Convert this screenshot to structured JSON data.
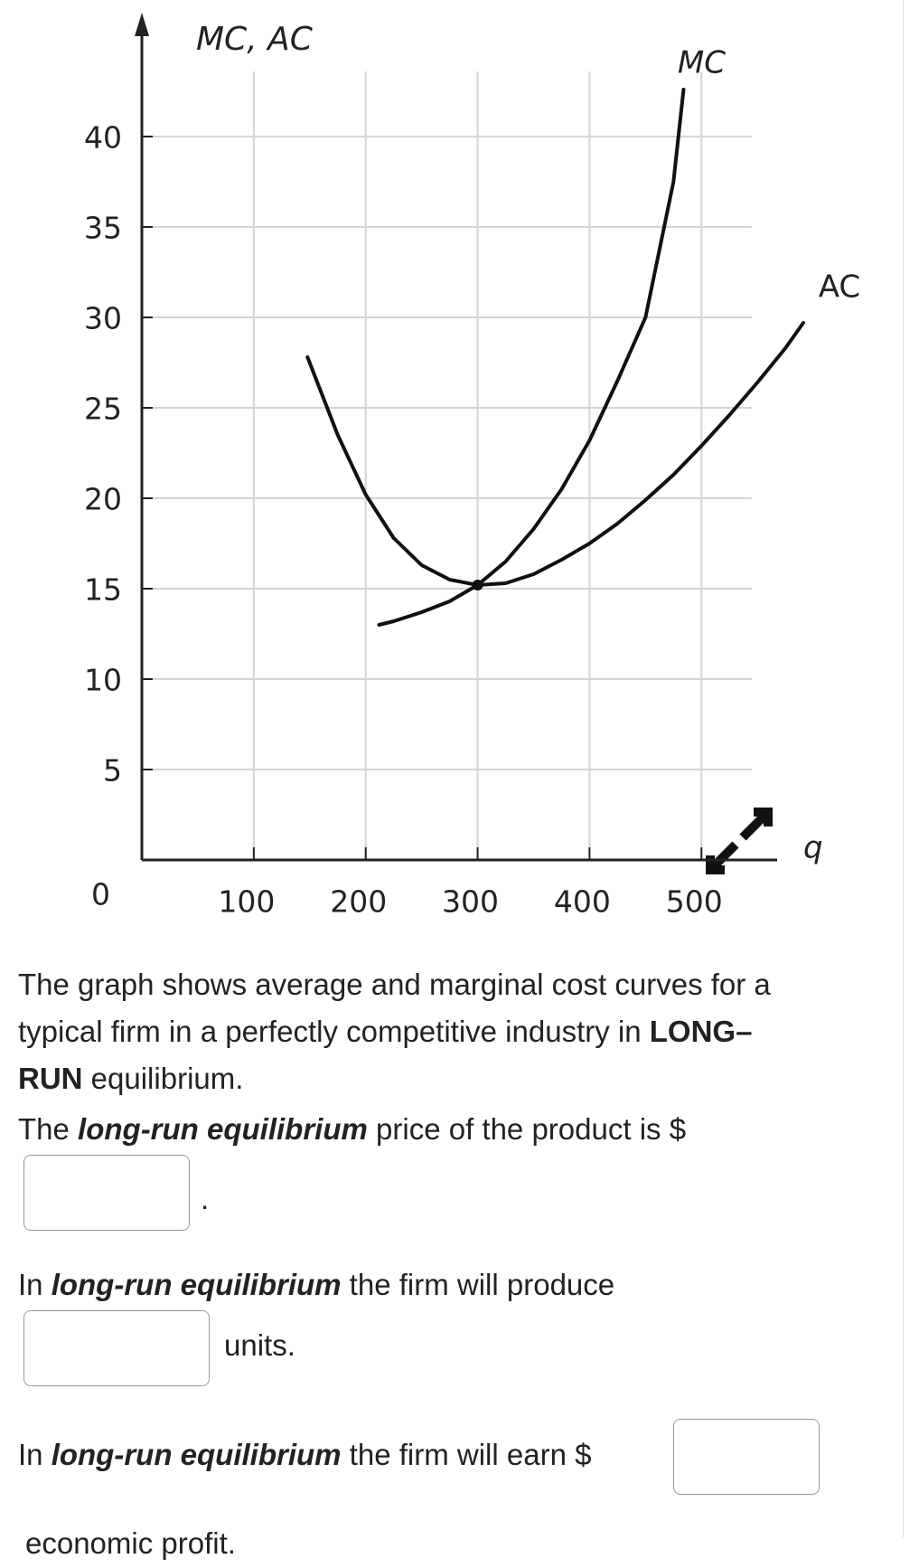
{
  "chart_data": {
    "type": "line",
    "axis_label_y": "MC,  AC",
    "axis_label_x": "q",
    "xlim": [
      0,
      545
    ],
    "ylim": [
      0,
      43.6
    ],
    "xticks": [
      100,
      200,
      300,
      400,
      500
    ],
    "yticks": [
      0,
      5,
      10,
      15,
      20,
      25,
      30,
      35,
      40
    ],
    "grid": true,
    "series": [
      {
        "name": "MC",
        "color": "#111111",
        "x": [
          212,
          225,
          250,
          275,
          300,
          325,
          350,
          375,
          400,
          425,
          450,
          475,
          484
        ],
        "values": [
          13,
          13.2,
          13.7,
          14.3,
          15.2,
          16.5,
          18.3,
          20.5,
          23.2,
          26.5,
          30,
          37.5,
          42.6
        ]
      },
      {
        "name": "AC",
        "color": "#111111",
        "x": [
          148,
          175,
          200,
          225,
          250,
          275,
          300,
          325,
          350,
          375,
          400,
          425,
          450,
          475,
          500,
          525,
          550,
          575,
          591
        ],
        "values": [
          27.8,
          23.5,
          20.2,
          17.8,
          16.3,
          15.5,
          15.2,
          15.3,
          15.8,
          16.6,
          17.5,
          18.6,
          19.9,
          21.3,
          22.9,
          24.6,
          26.4,
          28.3,
          29.7
        ]
      }
    ]
  },
  "question": {
    "intro": [
      "The graph shows average and marginal cost curves for a",
      "typical firm in a perfectly competitive industry in ",
      "LONG–",
      "RUN",
      " equilibrium."
    ],
    "q1": [
      "The ",
      "long-run equilibrium",
      " price of the product is $",
      "."
    ],
    "q2": [
      "In ",
      "long-run equilibrium",
      " the firm will produce",
      "units."
    ],
    "q3": [
      "In ",
      "long-run equilibrium",
      " the firm will earn $",
      "economic profit."
    ]
  }
}
